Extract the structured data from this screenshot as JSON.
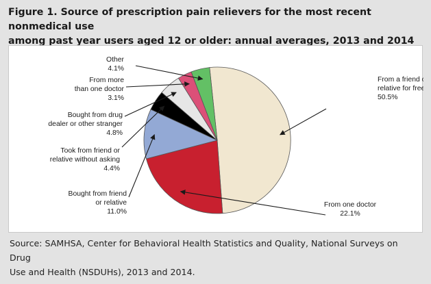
{
  "figure": {
    "title_line1": "Figure 1. Source of prescription pain relievers for the most recent nonmedical use",
    "title_line2": "among past year users aged 12 or older: annual averages, 2013 and 2014",
    "source_line1": "Source: SAMHSA, Center for Behavioral Health Statistics and Quality, National Surveys on Drug",
    "source_line2": "Use and Health (NSDUHs), 2013 and 2014."
  },
  "chart_data": {
    "type": "pie",
    "title": "Source of prescription pain relievers for the most recent nonmedical use among past year users aged 12 or older: annual averages, 2013 and 2014",
    "unit": "%",
    "slices": [
      {
        "label_lines": [
          "From a friend or",
          "relative for free"
        ],
        "value": 50.5,
        "value_label": "50.5%",
        "color": "#f1e7d0"
      },
      {
        "label_lines": [
          "From one doctor"
        ],
        "value": 22.1,
        "value_label": "22.1%",
        "color": "#c8202f"
      },
      {
        "label_lines": [
          "Bought from friend",
          "or relative"
        ],
        "value": 11.0,
        "value_label": "11.0%",
        "color": "#93a9d5"
      },
      {
        "label_lines": [
          "Took from friend or",
          "relative without asking"
        ],
        "value": 4.4,
        "value_label": "4.4%",
        "color": "#000000"
      },
      {
        "label_lines": [
          "Bought from drug",
          "dealer or other stranger"
        ],
        "value": 4.8,
        "value_label": "4.8%",
        "color": "#e6e6e6"
      },
      {
        "label_lines": [
          "From more",
          "than one doctor"
        ],
        "value": 3.1,
        "value_label": "3.1%",
        "color": "#db5078"
      },
      {
        "label_lines": [
          "Other"
        ],
        "value": 4.1,
        "value_label": "4.1%",
        "color": "#63c065"
      }
    ]
  }
}
